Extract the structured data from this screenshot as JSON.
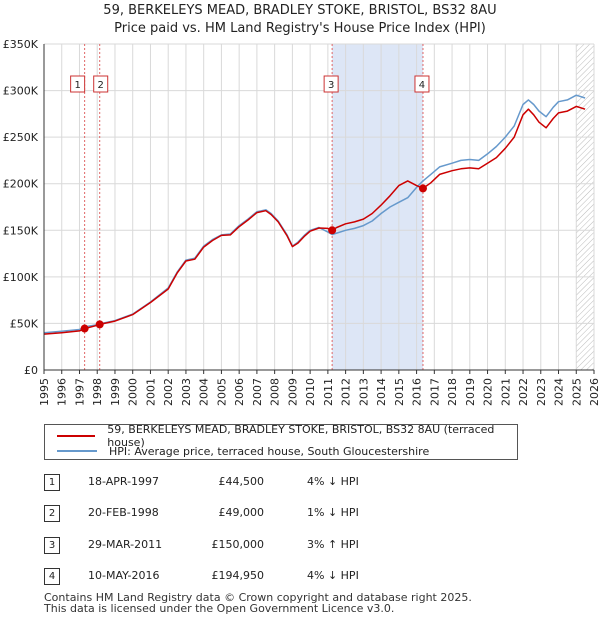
{
  "title_line1": "59, BERKELEYS MEAD, BRADLEY STOKE, BRISTOL, BS32 8AU",
  "title_line2": "Price paid vs. HM Land Registry's House Price Index (HPI)",
  "legend": {
    "property_label": "59, BERKELEYS MEAD, BRADLEY STOKE, BRISTOL, BS32 8AU (terraced house)",
    "hpi_label": "HPI: Average price, terraced house, South Gloucestershire"
  },
  "colors": {
    "property": "#cc0000",
    "hpi": "#6699cc",
    "shade": "#dde6f6",
    "grid": "#d9d9d9"
  },
  "sales": [
    {
      "num": "1",
      "date": "18-APR-1997",
      "price": "£44,500",
      "hpi": "4% ↓ HPI"
    },
    {
      "num": "2",
      "date": "20-FEB-1998",
      "price": "£49,000",
      "hpi": "1% ↓ HPI"
    },
    {
      "num": "3",
      "date": "29-MAR-2011",
      "price": "£150,000",
      "hpi": "3% ↑ HPI"
    },
    {
      "num": "4",
      "date": "10-MAY-2016",
      "price": "£194,950",
      "hpi": "4% ↓ HPI"
    }
  ],
  "footer": {
    "line1": "Contains HM Land Registry data © Crown copyright and database right 2025.",
    "line2": "This data is licensed under the Open Government Licence v3.0."
  },
  "chart_data": {
    "type": "line",
    "title": "59, BERKELEYS MEAD, BRADLEY STOKE, BRISTOL, BS32 8AU — Price paid vs. HM Land Registry's House Price Index (HPI)",
    "xlim": [
      1995,
      2026
    ],
    "ylim": [
      0,
      350000
    ],
    "x_ticks": [
      1995,
      1996,
      1997,
      1998,
      1999,
      2000,
      2001,
      2002,
      2003,
      2004,
      2005,
      2006,
      2007,
      2008,
      2009,
      2010,
      2011,
      2012,
      2013,
      2014,
      2015,
      2016,
      2017,
      2018,
      2019,
      2020,
      2021,
      2022,
      2023,
      2024,
      2025,
      2026
    ],
    "y_ticks": [
      {
        "value": 0,
        "label": "£0"
      },
      {
        "value": 50000,
        "label": "£50K"
      },
      {
        "value": 100000,
        "label": "£100K"
      },
      {
        "value": 150000,
        "label": "£150K"
      },
      {
        "value": 200000,
        "label": "£200K"
      },
      {
        "value": 250000,
        "label": "£250K"
      },
      {
        "value": 300000,
        "label": "£300K"
      },
      {
        "value": 350000,
        "label": "£350K"
      }
    ],
    "shaded_range": [
      2011.24,
      2016.36
    ],
    "hatched_from": 2025.0,
    "sale_markers": [
      {
        "num": "1",
        "x": 1997.29,
        "y": 44500
      },
      {
        "num": "2",
        "x": 1998.14,
        "y": 49000
      },
      {
        "num": "3",
        "x": 2011.24,
        "y": 150000
      },
      {
        "num": "4",
        "x": 2016.36,
        "y": 194950
      }
    ],
    "series": [
      {
        "name": "HPI: Average price, terraced house, South Gloucestershire",
        "x": [
          1995.0,
          1996.0,
          1997.0,
          1997.29,
          1998.0,
          1998.14,
          1999.0,
          2000.0,
          2001.0,
          2002.0,
          2002.5,
          2003.0,
          2003.5,
          2004.0,
          2004.5,
          2005.0,
          2005.5,
          2006.0,
          2006.5,
          2007.0,
          2007.5,
          2007.8,
          2008.2,
          2008.7,
          2009.0,
          2009.3,
          2009.7,
          2010.0,
          2010.5,
          2011.0,
          2011.24,
          2011.5,
          2012.0,
          2012.5,
          2013.0,
          2013.5,
          2014.0,
          2014.5,
          2015.0,
          2015.5,
          2016.0,
          2016.36,
          2016.8,
          2017.3,
          2018.0,
          2018.5,
          2019.0,
          2019.5,
          2020.0,
          2020.5,
          2021.0,
          2021.5,
          2022.0,
          2022.3,
          2022.6,
          2022.9,
          2023.3,
          2023.7,
          2024.0,
          2024.5,
          2025.0,
          2025.5
        ],
        "values": [
          40000,
          41500,
          43500,
          46300,
          48500,
          49500,
          53000,
          60000,
          73000,
          88000,
          105000,
          118000,
          120000,
          133000,
          140000,
          145000,
          146000,
          155000,
          162000,
          170000,
          172000,
          168000,
          160000,
          145000,
          133000,
          137000,
          145000,
          150000,
          153000,
          148000,
          145500,
          147000,
          150000,
          152000,
          155000,
          160000,
          168000,
          175000,
          180000,
          185000,
          196000,
          203000,
          210000,
          218000,
          222000,
          225000,
          226000,
          225000,
          232000,
          240000,
          250000,
          262000,
          285000,
          290000,
          285000,
          278000,
          272000,
          282000,
          288000,
          290000,
          295000,
          292000
        ]
      },
      {
        "name": "59, BERKELEYS MEAD, BRADLEY STOKE, BRISTOL, BS32 8AU (terraced house)",
        "x": [
          1995.0,
          1996.0,
          1997.0,
          1997.29,
          1998.0,
          1998.14,
          1999.0,
          2000.0,
          2001.0,
          2002.0,
          2002.5,
          2003.0,
          2003.5,
          2004.0,
          2004.5,
          2005.0,
          2005.5,
          2006.0,
          2006.5,
          2007.0,
          2007.5,
          2007.8,
          2008.2,
          2008.7,
          2009.0,
          2009.3,
          2009.7,
          2010.0,
          2010.5,
          2011.0,
          2011.24,
          2011.5,
          2012.0,
          2012.5,
          2013.0,
          2013.5,
          2014.0,
          2014.5,
          2015.0,
          2015.5,
          2016.0,
          2016.36,
          2016.8,
          2017.3,
          2018.0,
          2018.5,
          2019.0,
          2019.5,
          2020.0,
          2020.5,
          2021.0,
          2021.5,
          2022.0,
          2022.3,
          2022.6,
          2022.9,
          2023.3,
          2023.7,
          2024.0,
          2024.5,
          2025.0,
          2025.5
        ],
        "values": [
          38500,
          40000,
          42000,
          44500,
          48000,
          49000,
          52500,
          59500,
          72500,
          87000,
          104000,
          117000,
          119000,
          132000,
          139000,
          144500,
          145000,
          154000,
          161000,
          169000,
          171000,
          167000,
          159000,
          144000,
          132500,
          136000,
          144000,
          149000,
          152500,
          152000,
          150000,
          153000,
          157000,
          159000,
          162000,
          168000,
          177000,
          187000,
          198000,
          203000,
          198000,
          194950,
          201000,
          210000,
          214000,
          216000,
          217000,
          216000,
          222000,
          228000,
          238000,
          250000,
          274000,
          280000,
          274000,
          266000,
          260000,
          270000,
          276000,
          278000,
          283000,
          280000
        ]
      }
    ]
  }
}
